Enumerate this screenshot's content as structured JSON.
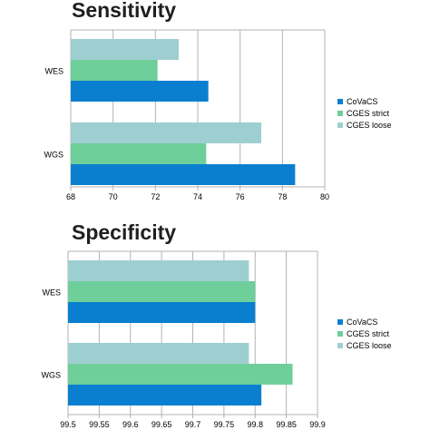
{
  "chart_data": [
    {
      "type": "bar",
      "orientation": "horizontal",
      "title": "Sensitivity",
      "categories": [
        "WES",
        "WGS"
      ],
      "series": [
        {
          "name": "CoVaCS",
          "color": "#0a7fd0",
          "values": [
            74.5,
            78.6
          ]
        },
        {
          "name": "CGES strict",
          "color": "#6ecf9a",
          "values": [
            72.1,
            74.4
          ]
        },
        {
          "name": "CGES loose",
          "color": "#9ecfd0",
          "values": [
            73.1,
            77.0
          ]
        }
      ],
      "xlim": [
        68,
        80
      ],
      "xticks": [
        "68",
        "70",
        "72",
        "74",
        "76",
        "78",
        "80"
      ],
      "grid": true,
      "legend": "right"
    },
    {
      "type": "bar",
      "orientation": "horizontal",
      "title": "Specificity",
      "categories": [
        "WES",
        "WGS"
      ],
      "series": [
        {
          "name": "CoVaCS",
          "color": "#0a7fd0",
          "values": [
            99.8,
            99.81
          ]
        },
        {
          "name": "CGES strict",
          "color": "#6ecf9a",
          "values": [
            99.8,
            99.86
          ]
        },
        {
          "name": "CGES loose",
          "color": "#9ecfd0",
          "values": [
            99.79,
            99.79
          ]
        }
      ],
      "xlim": [
        99.5,
        99.9
      ],
      "xticks": [
        "99.5",
        "99.55",
        "99.6",
        "99.65",
        "99.7",
        "99.75",
        "99.8",
        "99.85",
        "99.9"
      ],
      "grid": true,
      "legend": "right"
    }
  ]
}
